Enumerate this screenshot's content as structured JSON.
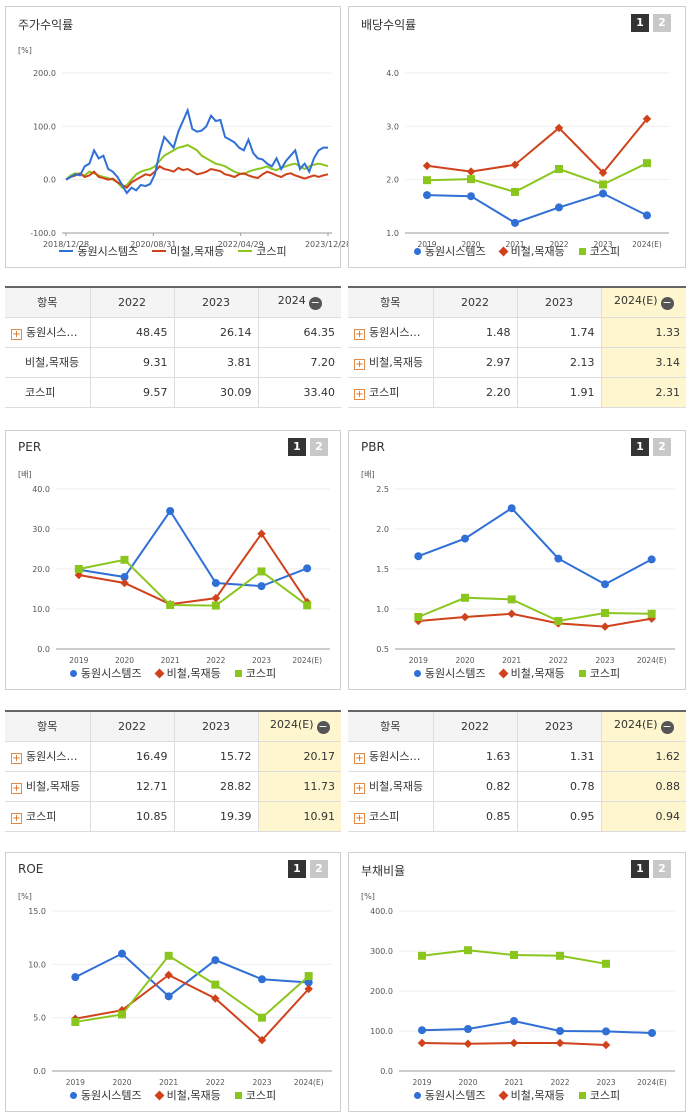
{
  "colors": {
    "blue": "#2f6fd6",
    "red": "#d0421b",
    "green": "#8bc61f",
    "legend_blue": "#2f6fd6",
    "legend_red": "#d0421b",
    "legend_green": "#8bc61f"
  },
  "series_names": [
    "동원시스템즈",
    "비철,목재등",
    "코스피"
  ],
  "panels": {
    "stock": {
      "title": "주가수익률",
      "unit": "[%]",
      "table": {
        "header": [
          "항목",
          "2022",
          "2023",
          "2024"
        ],
        "rows": [
          {
            "name": "동원시스…",
            "values": [
              "48.45",
              "26.14",
              "64.35"
            ]
          },
          {
            "name": "비철,목재등",
            "values": [
              "9.31",
              "3.81",
              "7.20"
            ]
          },
          {
            "name": "코스피",
            "values": [
              "9.57",
              "30.09",
              "33.40"
            ]
          }
        ]
      }
    },
    "dividend": {
      "title": "배당수익률",
      "unit": "",
      "btn1": "1",
      "btn2": "2",
      "table": {
        "header": [
          "항목",
          "2022",
          "2023",
          "2024(E)"
        ],
        "rows": [
          {
            "name": "동원시스…",
            "values": [
              "1.48",
              "1.74",
              "1.33"
            ]
          },
          {
            "name": "비철,목재등",
            "values": [
              "2.97",
              "2.13",
              "3.14"
            ]
          },
          {
            "name": "코스피",
            "values": [
              "2.20",
              "1.91",
              "2.31"
            ]
          }
        ]
      }
    },
    "per": {
      "title": "PER",
      "unit": "[배]",
      "btn1": "1",
      "btn2": "2",
      "table": {
        "header": [
          "항목",
          "2022",
          "2023",
          "2024(E)"
        ],
        "rows": [
          {
            "name": "동원시스…",
            "values": [
              "16.49",
              "15.72",
              "20.17"
            ]
          },
          {
            "name": "비철,목재등",
            "values": [
              "12.71",
              "28.82",
              "11.73"
            ]
          },
          {
            "name": "코스피",
            "values": [
              "10.85",
              "19.39",
              "10.91"
            ]
          }
        ]
      }
    },
    "pbr": {
      "title": "PBR",
      "unit": "[배]",
      "btn1": "1",
      "btn2": "2",
      "table": {
        "header": [
          "항목",
          "2022",
          "2023",
          "2024(E)"
        ],
        "rows": [
          {
            "name": "동원시스…",
            "values": [
              "1.63",
              "1.31",
              "1.62"
            ]
          },
          {
            "name": "비철,목재등",
            "values": [
              "0.82",
              "0.78",
              "0.88"
            ]
          },
          {
            "name": "코스피",
            "values": [
              "0.85",
              "0.95",
              "0.94"
            ]
          }
        ]
      }
    },
    "roe": {
      "title": "ROE",
      "unit": "[%]",
      "btn1": "1",
      "btn2": "2"
    },
    "debt": {
      "title": "부채비율",
      "unit": "[%]",
      "btn1": "1",
      "btn2": "2"
    }
  },
  "chart_data": [
    {
      "id": "stock",
      "type": "line",
      "title": "주가수익률",
      "ylabel": "[%]",
      "ylim": [
        -100,
        200
      ],
      "yticks": [
        "200.0",
        "100.0",
        "0.0",
        "-100.0"
      ],
      "xtick_labels": [
        "2018/12/28",
        "2020/08/31",
        "2022/04/29",
        "2023/12/28"
      ],
      "series": [
        {
          "name": "동원시스템즈",
          "values": [
            0,
            5,
            10,
            8,
            25,
            30,
            55,
            40,
            45,
            20,
            15,
            5,
            -10,
            -25,
            -15,
            -20,
            -10,
            -12,
            -8,
            10,
            50,
            80,
            70,
            60,
            90,
            110,
            130,
            95,
            90,
            92,
            100,
            120,
            110,
            112,
            80,
            75,
            70,
            60,
            55,
            75,
            50,
            40,
            38,
            30,
            25,
            40,
            20,
            35,
            45,
            55,
            20,
            30,
            15,
            40,
            55,
            60,
            60
          ]
        },
        {
          "name": "비철,목재등",
          "values": [
            0,
            5,
            8,
            12,
            5,
            8,
            15,
            5,
            3,
            0,
            2,
            -5,
            -10,
            -15,
            -5,
            0,
            5,
            10,
            8,
            15,
            25,
            20,
            18,
            15,
            22,
            18,
            20,
            15,
            10,
            12,
            15,
            20,
            18,
            16,
            10,
            8,
            5,
            10,
            12,
            8,
            5,
            3,
            10,
            15,
            12,
            8,
            5,
            10,
            12,
            8,
            5,
            2,
            5,
            8,
            5,
            8,
            10
          ]
        },
        {
          "name": "코스피",
          "values": [
            0,
            8,
            12,
            10,
            8,
            15,
            12,
            8,
            5,
            3,
            0,
            -5,
            -15,
            -10,
            0,
            10,
            15,
            18,
            20,
            25,
            35,
            45,
            50,
            55,
            60,
            62,
            65,
            60,
            55,
            45,
            40,
            35,
            30,
            28,
            25,
            20,
            15,
            12,
            10,
            15,
            18,
            20,
            22,
            25,
            20,
            18,
            22,
            25,
            28,
            30,
            25,
            20,
            25,
            28,
            30,
            28,
            25
          ]
        }
      ]
    },
    {
      "id": "dividend",
      "type": "line",
      "ylim": [
        1.0,
        4.0
      ],
      "yticks": [
        "4.0",
        "3.0",
        "2.0",
        "1.0"
      ],
      "categories": [
        "2019",
        "2020",
        "2021",
        "2022",
        "2023",
        "2024(E)"
      ],
      "series": [
        {
          "name": "동원시스템즈",
          "values": [
            1.71,
            1.69,
            1.19,
            1.48,
            1.74,
            1.33
          ]
        },
        {
          "name": "비철,목재등",
          "values": [
            2.26,
            2.15,
            2.28,
            2.97,
            2.13,
            3.14
          ]
        },
        {
          "name": "코스피",
          "values": [
            1.99,
            2.01,
            1.77,
            2.2,
            1.91,
            2.31
          ]
        }
      ]
    },
    {
      "id": "per",
      "type": "line",
      "ylabel": "[배]",
      "ylim": [
        0,
        40
      ],
      "yticks": [
        "40.0",
        "30.0",
        "20.0",
        "10.0",
        "0.0"
      ],
      "categories": [
        "2019",
        "2020",
        "2021",
        "2022",
        "2023",
        "2024(E)"
      ],
      "series": [
        {
          "name": "동원시스템즈",
          "values": [
            19.8,
            18.0,
            34.5,
            16.49,
            15.72,
            20.17
          ]
        },
        {
          "name": "비철,목재등",
          "values": [
            18.5,
            16.5,
            11.2,
            12.71,
            28.82,
            11.73
          ]
        },
        {
          "name": "코스피",
          "values": [
            20.0,
            22.3,
            11.0,
            10.85,
            19.39,
            10.91
          ]
        }
      ]
    },
    {
      "id": "pbr",
      "type": "line",
      "ylabel": "[배]",
      "ylim": [
        0.5,
        2.5
      ],
      "yticks": [
        "2.5",
        "2.0",
        "1.5",
        "1.0",
        "0.5"
      ],
      "categories": [
        "2019",
        "2020",
        "2021",
        "2022",
        "2023",
        "2024(E)"
      ],
      "series": [
        {
          "name": "동원시스템즈",
          "values": [
            1.66,
            1.88,
            2.26,
            1.63,
            1.31,
            1.62
          ]
        },
        {
          "name": "비철,목재등",
          "values": [
            0.85,
            0.9,
            0.94,
            0.82,
            0.78,
            0.88
          ]
        },
        {
          "name": "코스피",
          "values": [
            0.9,
            1.14,
            1.12,
            0.85,
            0.95,
            0.94
          ]
        }
      ]
    },
    {
      "id": "roe",
      "type": "line",
      "ylabel": "[%]",
      "ylim": [
        0,
        15
      ],
      "yticks": [
        "15.0",
        "10.0",
        "5.0",
        "0.0"
      ],
      "categories": [
        "2019",
        "2020",
        "2021",
        "2022",
        "2023",
        "2024(E)"
      ],
      "series": [
        {
          "name": "동원시스템즈",
          "values": [
            8.8,
            11.0,
            7.0,
            10.4,
            8.6,
            8.3
          ]
        },
        {
          "name": "비철,목재등",
          "values": [
            4.9,
            5.7,
            9.0,
            6.8,
            2.9,
            7.7
          ]
        },
        {
          "name": "코스피",
          "values": [
            4.6,
            5.3,
            10.8,
            8.1,
            5.0,
            8.9
          ]
        }
      ]
    },
    {
      "id": "debt",
      "type": "line",
      "ylabel": "[%]",
      "ylim": [
        0,
        400
      ],
      "yticks": [
        "400.0",
        "300.0",
        "200.0",
        "100.0",
        "0.0"
      ],
      "categories": [
        "2019",
        "2020",
        "2021",
        "2022",
        "2023",
        "2024(E)"
      ],
      "series": [
        {
          "name": "동원시스템즈",
          "values": [
            102,
            105,
            125,
            100,
            99,
            95
          ]
        },
        {
          "name": "비철,목재등",
          "values": [
            70,
            68,
            70,
            70,
            65,
            null
          ]
        },
        {
          "name": "코스피",
          "values": [
            288,
            302,
            290,
            288,
            268,
            null
          ]
        }
      ]
    }
  ]
}
